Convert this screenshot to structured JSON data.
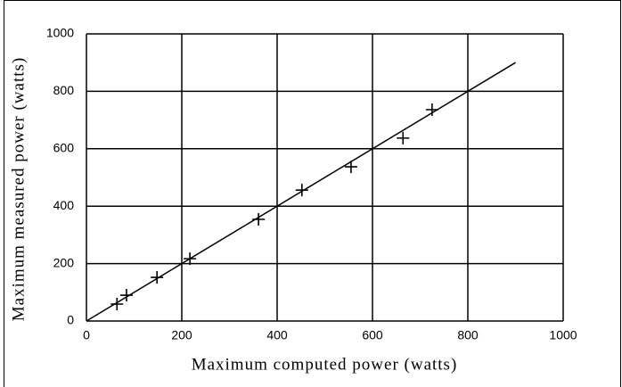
{
  "chart_data": {
    "type": "scatter",
    "x_label": "Maximum computed power (watts)",
    "y_label": "Maximum measured power (watts)",
    "series": [
      {
        "color": "#000000",
        "x": [
          64,
          84,
          148,
          217,
          361,
          452,
          555,
          664,
          725
        ],
        "values": [
          59,
          90,
          152,
          217,
          354,
          456,
          537,
          637,
          736
        ]
      }
    ],
    "fit_line": {
      "color": "#000000",
      "x": [
        0,
        900
      ],
      "values": [
        0,
        900
      ]
    },
    "xlim": [
      0,
      1000
    ],
    "xticks": [
      0,
      200,
      400,
      600,
      800,
      1000
    ],
    "ylim": [
      0,
      1000
    ],
    "yticks": [
      0,
      200,
      400,
      600,
      800,
      1000
    ],
    "grid": true
  }
}
